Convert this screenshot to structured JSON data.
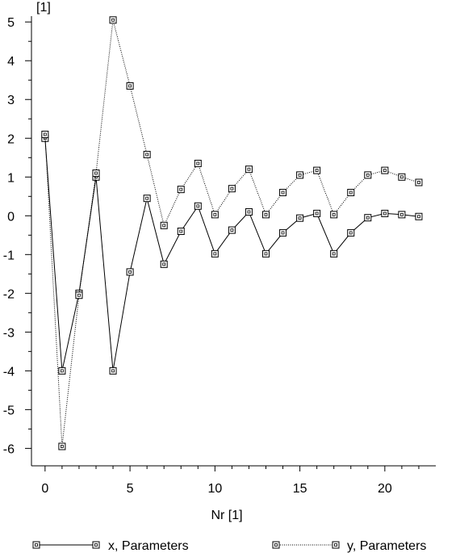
{
  "chart_data": {
    "type": "line",
    "title": "",
    "xlabel": "Nr [1]",
    "ylabel": "[1]",
    "xlim": [
      -0.8,
      23
    ],
    "ylim": [
      -6.45,
      5.15
    ],
    "x_ticks": [
      0,
      5,
      10,
      15,
      20
    ],
    "y_ticks": [
      5,
      4,
      3,
      2,
      1,
      0,
      -1,
      -2,
      -3,
      -4,
      -5,
      -6
    ],
    "x_tick_labels": [
      "0",
      "5",
      "10",
      "15",
      "20"
    ],
    "y_tick_labels": [
      "5",
      "4",
      "3",
      "2",
      "1",
      "0",
      "-1",
      "-2",
      "-3",
      "-4",
      "-5",
      "-6"
    ],
    "grid": false,
    "legend_position": "bottom",
    "x": [
      0,
      1,
      2,
      3,
      4,
      5,
      6,
      7,
      8,
      9,
      10,
      11,
      12,
      13,
      14,
      15,
      16,
      17,
      18,
      19,
      20,
      21,
      22
    ],
    "series": [
      {
        "name": "x, Parameters",
        "line_style": "solid",
        "values": [
          2.0,
          -4.0,
          -2.0,
          1.0,
          -4.0,
          -1.45,
          0.45,
          -1.25,
          -0.4,
          0.25,
          -0.98,
          -0.37,
          0.1,
          -0.98,
          -0.44,
          -0.06,
          0.06,
          -0.98,
          -0.44,
          -0.05,
          0.06,
          0.03,
          -0.02
        ]
      },
      {
        "name": "y, Parameters",
        "line_style": "dotted",
        "values": [
          2.1,
          -5.95,
          -2.05,
          1.1,
          5.05,
          3.35,
          1.58,
          -0.25,
          0.68,
          1.35,
          0.03,
          0.7,
          1.2,
          0.03,
          0.6,
          1.05,
          1.17,
          0.03,
          0.6,
          1.05,
          1.17,
          1.0,
          0.86
        ]
      }
    ]
  }
}
